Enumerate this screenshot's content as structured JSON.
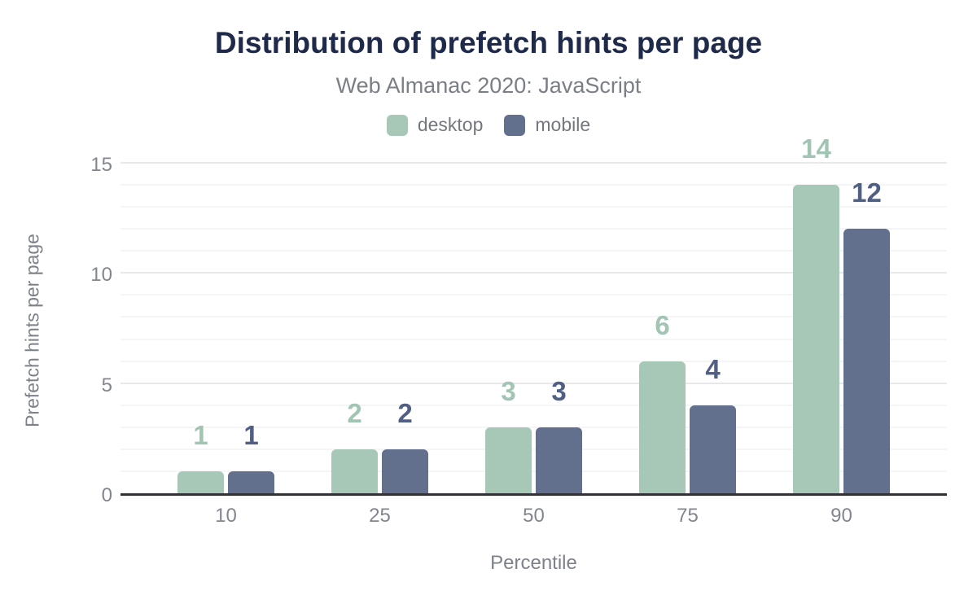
{
  "header": {
    "title": "Distribution of prefetch hints per page",
    "subtitle": "Web Almanac 2020: JavaScript"
  },
  "colors": {
    "title_text": "#1f2949",
    "subtitle_text": "#7a7f86",
    "tick_text": "#82868e",
    "axis_line": "#323137",
    "grid_major": "#e8e8eb",
    "grid_minor": "#f5f5f7",
    "background": "#ffffff",
    "desktop": "#a8c8b7",
    "mobile": "#62708d"
  },
  "chart_data": {
    "type": "bar",
    "title": "Distribution of prefetch hints per page",
    "subtitle": "Web Almanac 2020: JavaScript",
    "categories": [
      "10",
      "25",
      "50",
      "75",
      "90"
    ],
    "series": [
      {
        "name": "desktop",
        "values": [
          1,
          2,
          3,
          6,
          14
        ],
        "color": "#a8c8b7",
        "label_color": "#a2c4b2"
      },
      {
        "name": "mobile",
        "values": [
          1,
          2,
          3,
          4,
          12
        ],
        "color": "#62708d",
        "label_color": "#506084"
      }
    ],
    "xlabel": "Percentile",
    "ylabel": "Prefetch hints per page",
    "ylim": [
      0,
      15
    ],
    "yticks": [
      0,
      5,
      10,
      15
    ],
    "minor_grid_step": 1,
    "grid": true,
    "legend_position": "top",
    "data_labels": true
  }
}
